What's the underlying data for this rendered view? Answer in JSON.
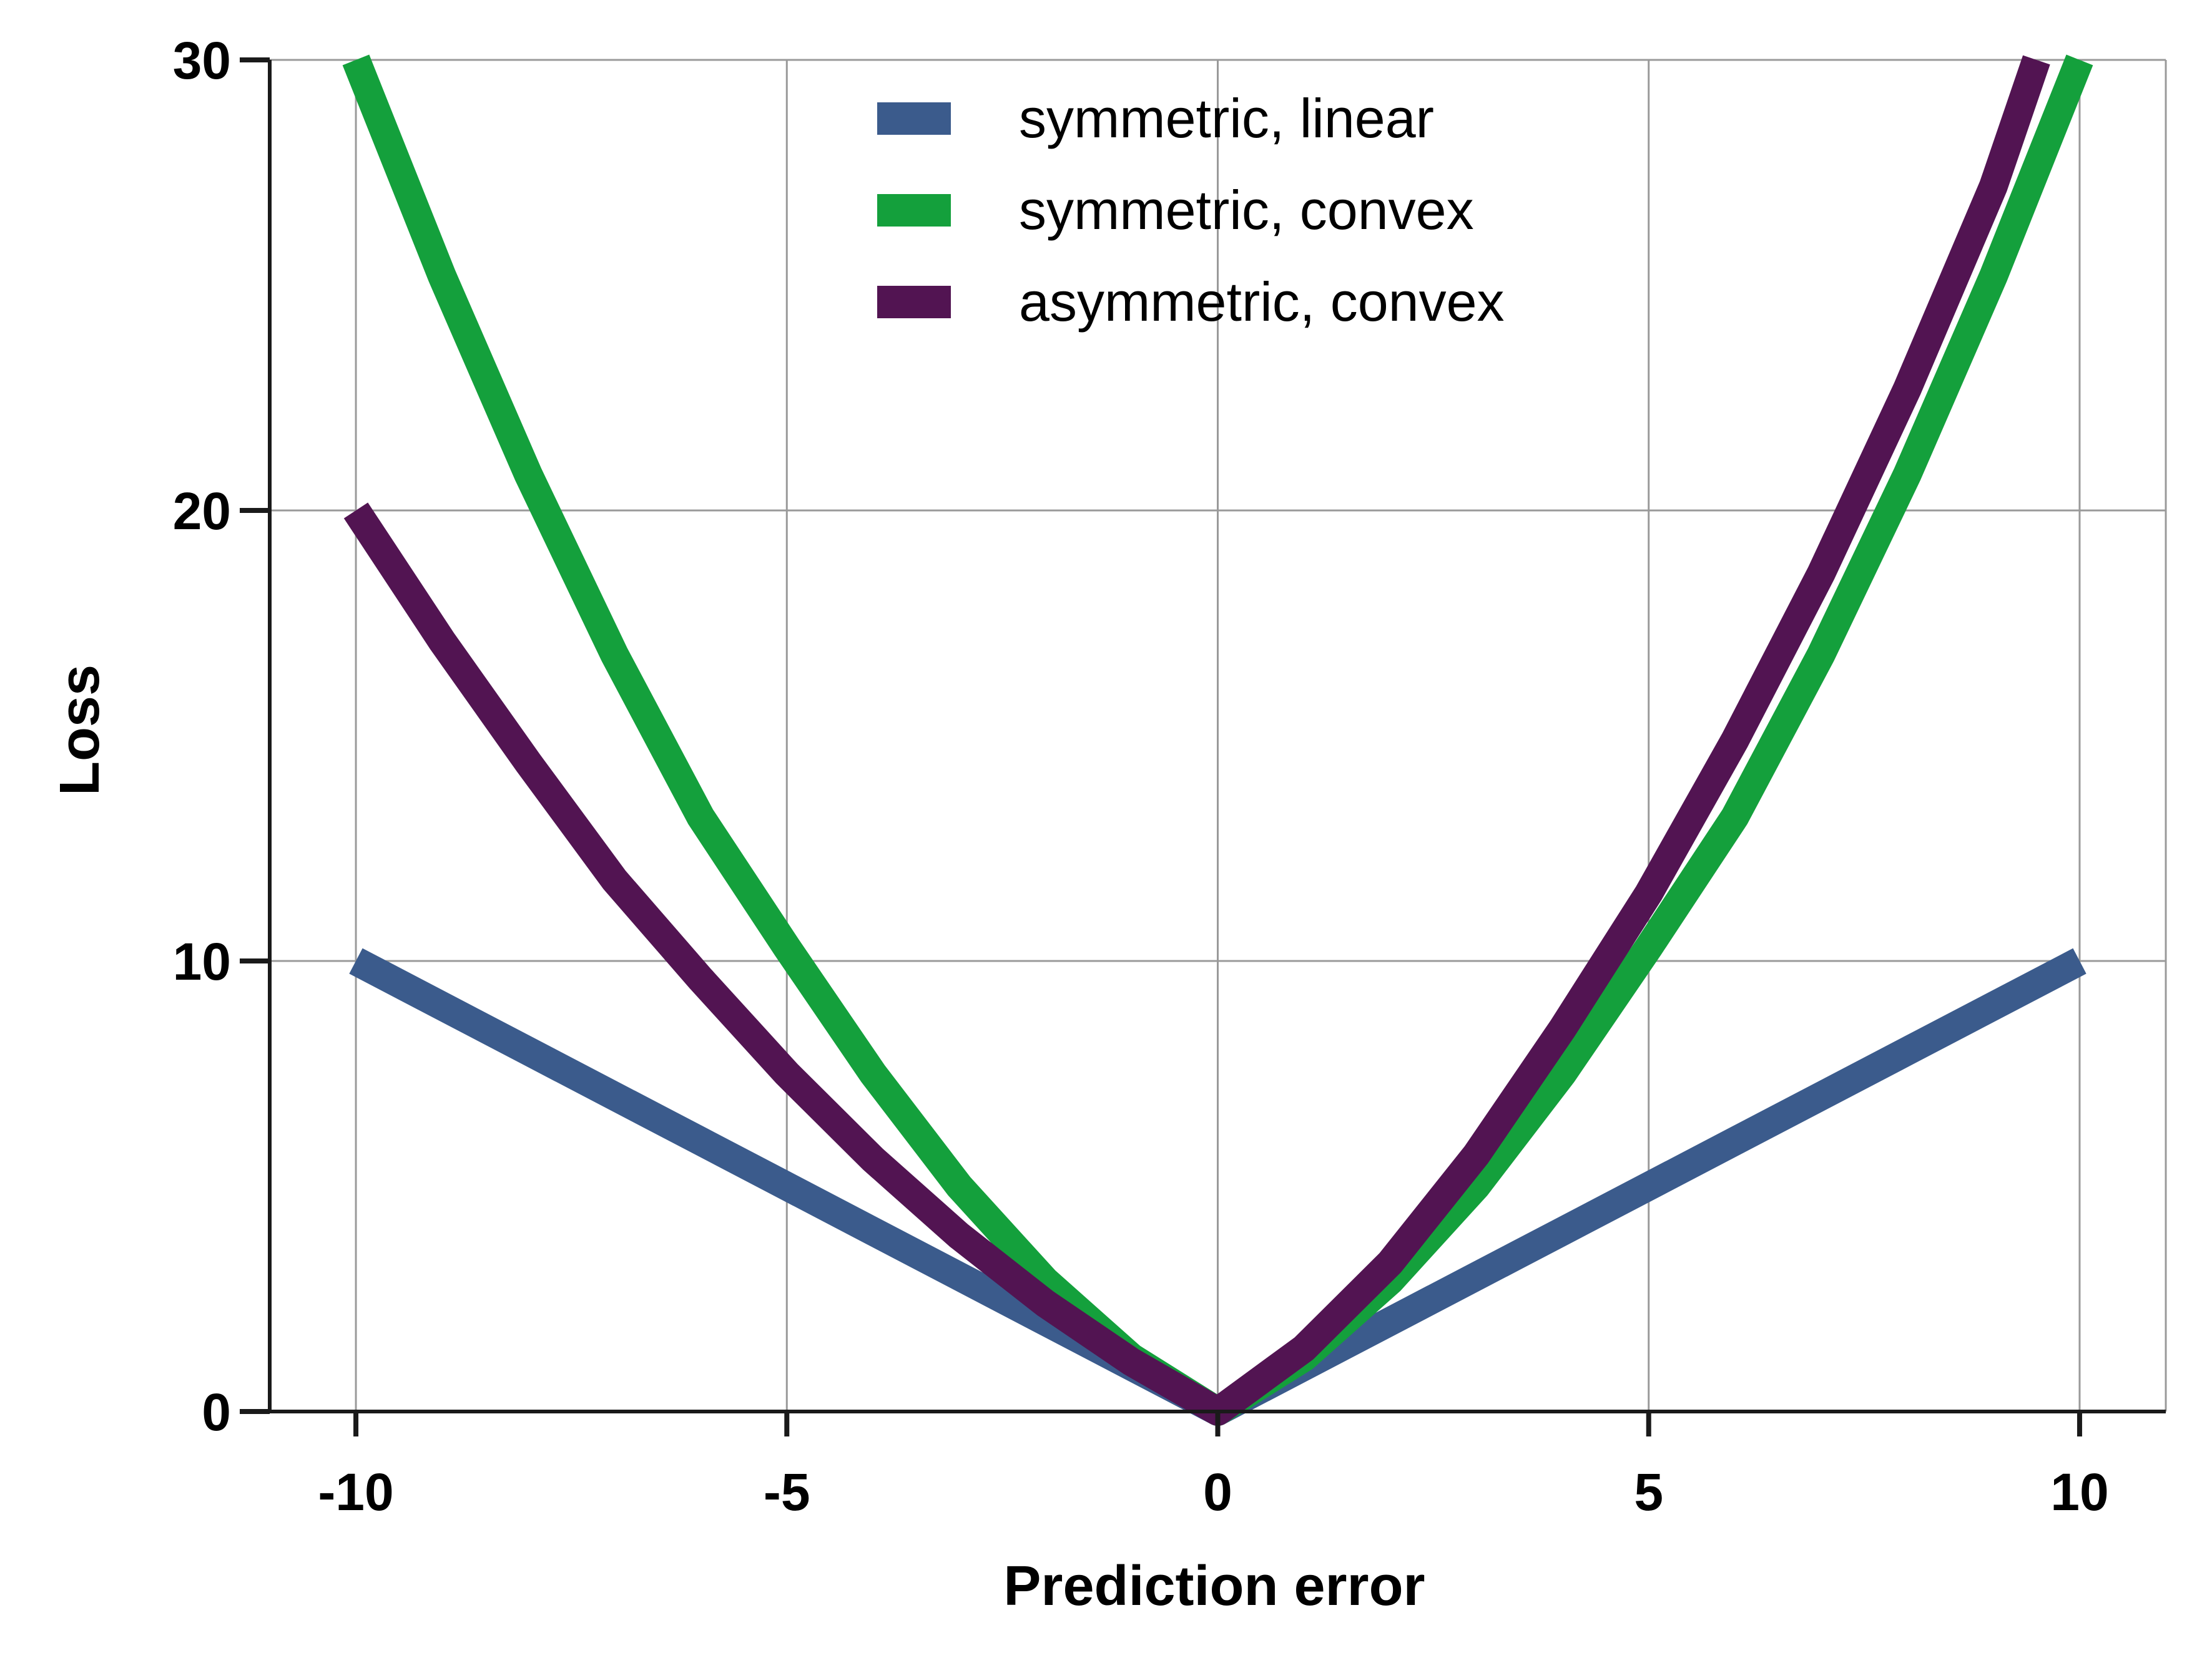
{
  "chart_data": {
    "type": "line",
    "xlabel": "Prediction error",
    "ylabel": "Loss",
    "xlim": [
      -11,
      11
    ],
    "ylim": [
      0,
      30
    ],
    "xticks": [
      -10,
      -5,
      0,
      5,
      10
    ],
    "xtick_labels": [
      "-10",
      "-5",
      "0",
      "5",
      "10"
    ],
    "yticks": [
      0,
      10,
      20,
      30
    ],
    "ytick_labels": [
      "0",
      "10",
      "20",
      "30"
    ],
    "grid": true,
    "legend_position": "top-center",
    "series": [
      {
        "name": "symmetric, linear",
        "color": "#3b5b8c",
        "x": [
          -10,
          -8,
          -6,
          -4,
          -2,
          0,
          2,
          4,
          6,
          8,
          10
        ],
        "y": [
          10,
          8,
          6,
          4,
          2,
          0,
          2,
          4,
          6,
          8,
          10
        ]
      },
      {
        "name": "symmetric, convex",
        "color": "#14a03c",
        "x": [
          -10,
          -9,
          -8,
          -7,
          -6,
          -5,
          -4,
          -3,
          -2,
          -1,
          0,
          1,
          2,
          3,
          4,
          5,
          6,
          7,
          8,
          9,
          10
        ],
        "y": [
          30,
          25.2,
          20.8,
          16.8,
          13.2,
          10.3,
          7.5,
          5.0,
          2.9,
          1.2,
          0,
          1.2,
          2.9,
          5.0,
          7.5,
          10.3,
          13.2,
          16.8,
          20.8,
          25.2,
          30
        ]
      },
      {
        "name": "asymmetric, convex",
        "color": "#521452",
        "x": [
          -10,
          -9,
          -8,
          -7,
          -6,
          -5,
          -4,
          -3,
          -2,
          -1,
          0,
          1,
          2,
          3,
          4,
          5,
          6,
          7,
          8,
          9,
          9.5
        ],
        "y": [
          20,
          17.1,
          14.4,
          11.8,
          9.6,
          7.5,
          5.6,
          3.9,
          2.4,
          1.1,
          0,
          1.4,
          3.3,
          5.7,
          8.5,
          11.5,
          14.9,
          18.6,
          22.7,
          27.2,
          30
        ]
      }
    ]
  }
}
